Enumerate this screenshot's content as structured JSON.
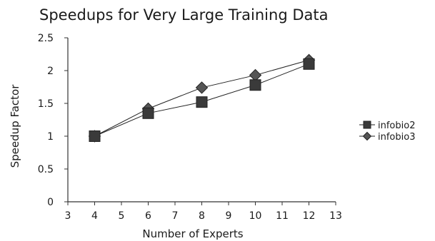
{
  "chart_data": {
    "type": "line",
    "title": "Speedups for Very Large Training Data",
    "xlabel": "Number of Experts",
    "ylabel": "Speedup Factor",
    "xlim": [
      3,
      13
    ],
    "ylim": [
      0,
      2.5
    ],
    "x_ticks": [
      "3",
      "4",
      "5",
      "6",
      "7",
      "8",
      "9",
      "10",
      "11",
      "12",
      "13"
    ],
    "y_ticks": [
      "0",
      "0.5",
      "1",
      "1.5",
      "2",
      "2.5"
    ],
    "grid": false,
    "legend_position": "right",
    "series": [
      {
        "name": "infobio2",
        "marker": "square",
        "color": "#3a3a3a",
        "x": [
          4,
          6,
          8,
          10,
          12
        ],
        "y": [
          1.0,
          1.35,
          1.52,
          1.78,
          2.1
        ]
      },
      {
        "name": "infobio3",
        "marker": "diamond",
        "color": "#555555",
        "x": [
          4,
          6,
          8,
          10,
          12
        ],
        "y": [
          1.0,
          1.42,
          1.74,
          1.93,
          2.16
        ]
      }
    ]
  }
}
